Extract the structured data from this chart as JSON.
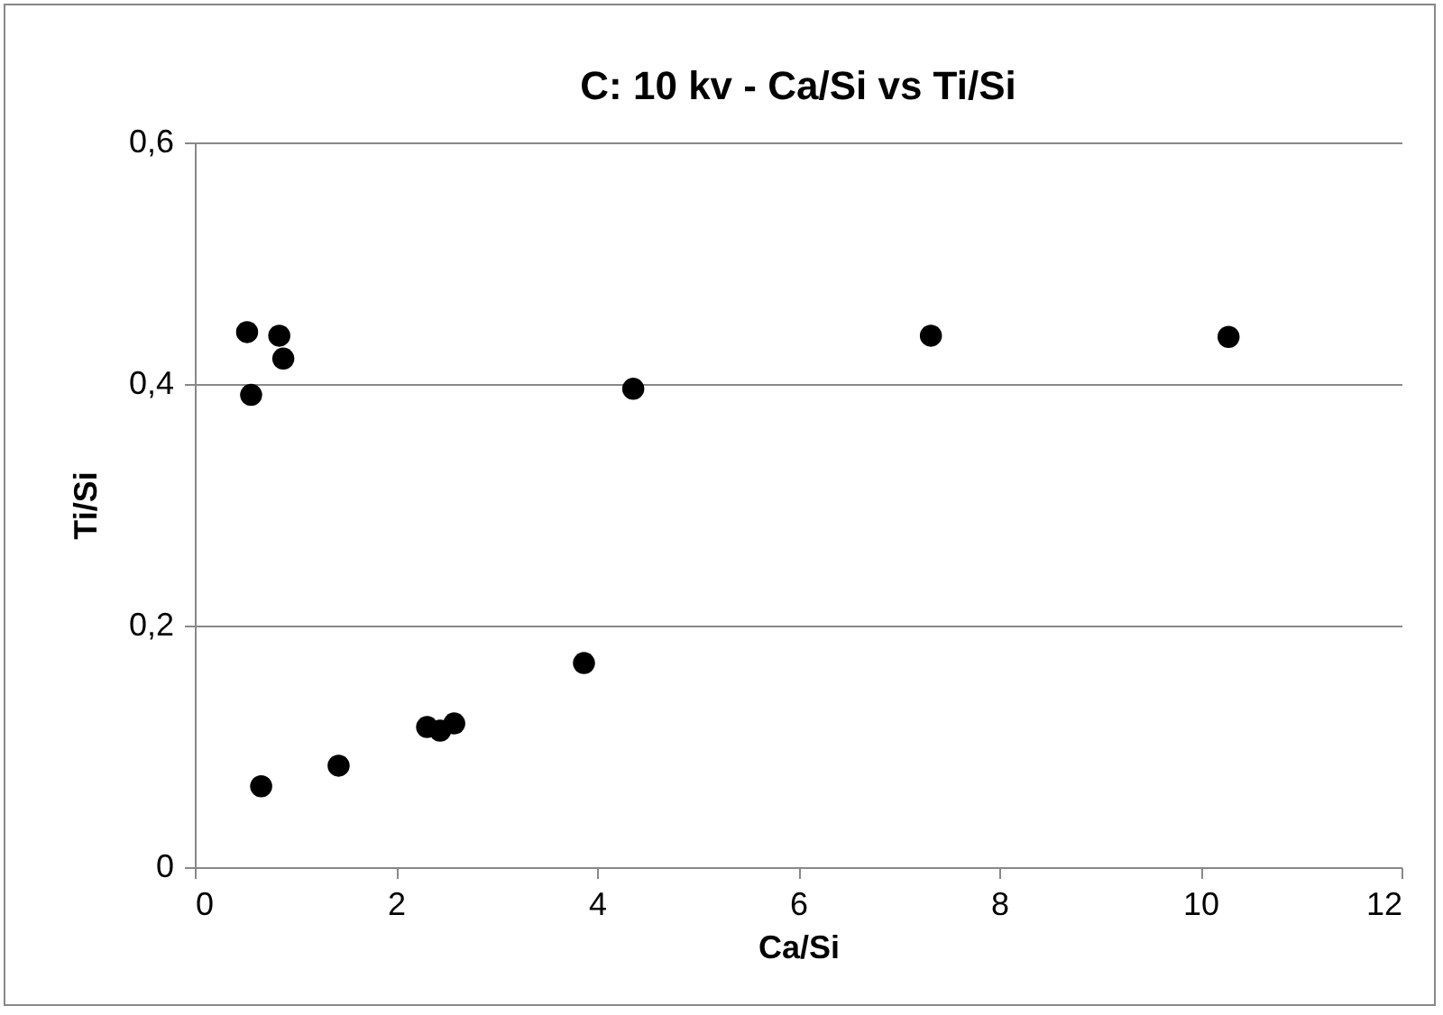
{
  "chart_data": {
    "type": "scatter",
    "title": "C: 10 kv - Ca/Si vs Ti/Si",
    "xlabel": "Ca/Si",
    "ylabel": "Ti/Si",
    "series": [
      {
        "color": "#000000",
        "x": [
          0.52,
          0.84,
          0.88,
          0.56,
          0.66,
          1.43,
          2.31,
          2.44,
          2.58,
          3.87,
          4.36,
          7.32,
          10.28
        ],
        "values": [
          0.443,
          0.44,
          0.421,
          0.391,
          0.067,
          0.084,
          0.116,
          0.113,
          0.119,
          0.169,
          0.396,
          0.44,
          0.439
        ]
      }
    ],
    "xlim": [
      0,
      12
    ],
    "xticks": [
      0,
      2,
      4,
      6,
      8,
      10,
      12
    ],
    "ylim": [
      0,
      0.6
    ],
    "yticks": [
      {
        "value": 0,
        "label": "0"
      },
      {
        "value": 0.2,
        "label": "0,2"
      },
      {
        "value": 0.4,
        "label": "0,4"
      },
      {
        "value": 0.6,
        "label": "0,6"
      }
    ],
    "grid": "y",
    "marker": "circle"
  }
}
